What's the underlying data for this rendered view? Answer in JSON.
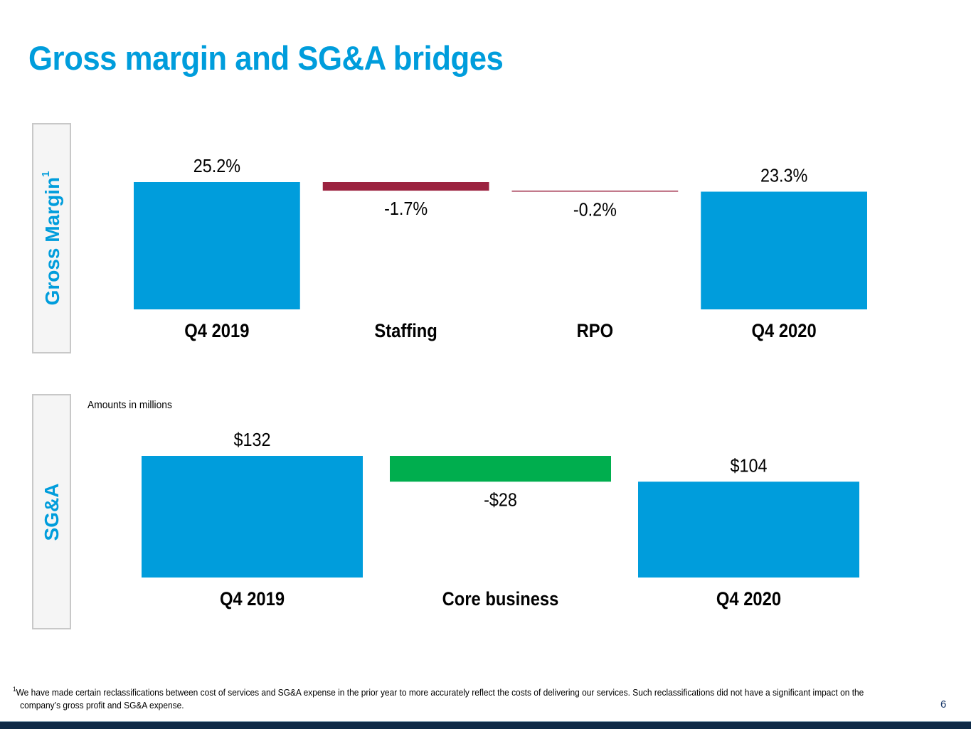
{
  "title": "Gross margin and SG&A bridges",
  "colors": {
    "title": "#009ddc",
    "total_bar": "#009ddc",
    "decrease_bar_gm": "#9b2340",
    "decrease_bar_sga": "#00ae4e",
    "footer_bar": "#0e2a47"
  },
  "sections": {
    "gross_margin": {
      "label": "Gross Margin",
      "superscript": "1"
    },
    "sga": {
      "label": "SG&A",
      "note": "Amounts in millions"
    }
  },
  "chart_data": [
    {
      "type": "bar",
      "subtype": "waterfall",
      "title": "Gross Margin",
      "unit": "%",
      "categories": [
        "Q4 2019",
        "Staffing",
        "RPO",
        "Q4 2020"
      ],
      "values": [
        25.2,
        -1.7,
        -0.2,
        23.3
      ],
      "kinds": [
        "total",
        "delta",
        "delta",
        "total"
      ],
      "data_labels": [
        "25.2%",
        "-1.7%",
        "-0.2%",
        "23.3%"
      ],
      "xlabel": "",
      "ylabel": "",
      "grid": false,
      "legend": "none"
    },
    {
      "type": "bar",
      "subtype": "waterfall",
      "title": "SG&A",
      "unit": "$M",
      "categories": [
        "Q4 2019",
        "Core business",
        "Q4 2020"
      ],
      "values": [
        132,
        -28,
        104
      ],
      "kinds": [
        "total",
        "delta",
        "total"
      ],
      "data_labels": [
        "$132",
        "-$28",
        "$104"
      ],
      "xlabel": "",
      "ylabel": "",
      "grid": false,
      "legend": "none"
    }
  ],
  "footnote": {
    "marker": "1",
    "line1": "We have made certain reclassifications between cost of services and SG&A expense in the prior year to more accurately reflect the costs of delivering our services. Such reclassifications did not have a significant impact on the",
    "line2": "company’s gross profit and SG&A expense."
  },
  "page_number": "6"
}
